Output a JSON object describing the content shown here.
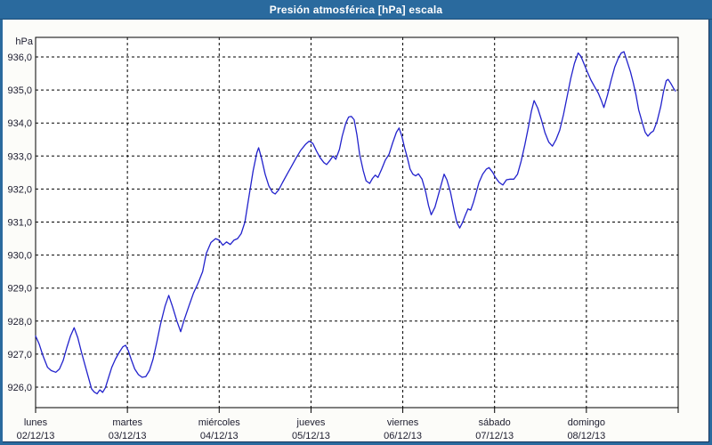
{
  "window": {
    "title": "Presión atmosférica [hPa] escala"
  },
  "colors": {
    "frame": "#2A6A9E",
    "frame_inner_dark": "#16355E",
    "titlebar_text": "#FFFFFF",
    "plot_background": "#FFFFFF",
    "content_background": "#FCFCF9",
    "grid": "#000000",
    "series_line": "#2222CC",
    "tick_text": "#1C1C2E"
  },
  "chart_data": {
    "type": "line",
    "title": "Presión atmosférica [hPa] escala",
    "unit_label": "hPa",
    "grid": "on",
    "legend": "none",
    "ylim": [
      925.4,
      936.6
    ],
    "x_range_days": [
      0,
      7
    ],
    "y_ticks": [
      {
        "value": 936.0,
        "label": "936,0"
      },
      {
        "value": 935.0,
        "label": "935,0"
      },
      {
        "value": 934.0,
        "label": "934,0"
      },
      {
        "value": 933.0,
        "label": "933,0"
      },
      {
        "value": 932.0,
        "label": "932,0"
      },
      {
        "value": 931.0,
        "label": "931,0"
      },
      {
        "value": 930.0,
        "label": "930,0"
      },
      {
        "value": 929.0,
        "label": "929,0"
      },
      {
        "value": 928.0,
        "label": "928,0"
      },
      {
        "value": 927.0,
        "label": "927,0"
      },
      {
        "value": 926.0,
        "label": "926,0"
      }
    ],
    "x_ticks": [
      {
        "day": "lunes",
        "date": "02/12/13",
        "t": 0
      },
      {
        "day": "martes",
        "date": "03/12/13",
        "t": 1
      },
      {
        "day": "miércoles",
        "date": "04/12/13",
        "t": 2
      },
      {
        "day": "jueves",
        "date": "05/12/13",
        "t": 3
      },
      {
        "day": "viernes",
        "date": "06/12/13",
        "t": 4
      },
      {
        "day": "sábado",
        "date": "07/12/13",
        "t": 5
      },
      {
        "day": "domingo",
        "date": "08/12/13",
        "t": 6
      }
    ],
    "series": [
      {
        "name": "Presión atmosférica",
        "color": "#2222CC",
        "points": [
          [
            0.0,
            927.55
          ],
          [
            0.04,
            927.3
          ],
          [
            0.08,
            926.95
          ],
          [
            0.13,
            926.6
          ],
          [
            0.17,
            926.5
          ],
          [
            0.22,
            926.45
          ],
          [
            0.26,
            926.55
          ],
          [
            0.3,
            926.8
          ],
          [
            0.34,
            927.2
          ],
          [
            0.38,
            927.55
          ],
          [
            0.42,
            927.8
          ],
          [
            0.46,
            927.5
          ],
          [
            0.5,
            927.05
          ],
          [
            0.54,
            926.65
          ],
          [
            0.58,
            926.25
          ],
          [
            0.61,
            925.95
          ],
          [
            0.64,
            925.85
          ],
          [
            0.67,
            925.8
          ],
          [
            0.7,
            925.92
          ],
          [
            0.73,
            925.84
          ],
          [
            0.76,
            925.98
          ],
          [
            0.79,
            926.25
          ],
          [
            0.83,
            926.6
          ],
          [
            0.87,
            926.85
          ],
          [
            0.91,
            927.05
          ],
          [
            0.95,
            927.22
          ],
          [
            0.98,
            927.27
          ],
          [
            1.01,
            927.1
          ],
          [
            1.04,
            926.85
          ],
          [
            1.08,
            926.55
          ],
          [
            1.12,
            926.38
          ],
          [
            1.16,
            926.3
          ],
          [
            1.2,
            926.32
          ],
          [
            1.24,
            926.5
          ],
          [
            1.28,
            926.85
          ],
          [
            1.32,
            927.35
          ],
          [
            1.36,
            927.9
          ],
          [
            1.41,
            928.45
          ],
          [
            1.45,
            928.78
          ],
          [
            1.49,
            928.45
          ],
          [
            1.54,
            928.0
          ],
          [
            1.58,
            927.68
          ],
          [
            1.62,
            928.05
          ],
          [
            1.67,
            928.45
          ],
          [
            1.72,
            928.85
          ],
          [
            1.77,
            929.15
          ],
          [
            1.82,
            929.5
          ],
          [
            1.86,
            930.05
          ],
          [
            1.91,
            930.38
          ],
          [
            1.96,
            930.5
          ],
          [
            2.0,
            930.45
          ],
          [
            2.04,
            930.3
          ],
          [
            2.08,
            930.4
          ],
          [
            2.12,
            930.32
          ],
          [
            2.16,
            930.45
          ],
          [
            2.2,
            930.5
          ],
          [
            2.24,
            930.65
          ],
          [
            2.28,
            931.0
          ],
          [
            2.32,
            931.7
          ],
          [
            2.37,
            932.55
          ],
          [
            2.41,
            933.1
          ],
          [
            2.43,
            933.25
          ],
          [
            2.46,
            932.95
          ],
          [
            2.5,
            932.45
          ],
          [
            2.54,
            932.1
          ],
          [
            2.58,
            931.9
          ],
          [
            2.61,
            931.85
          ],
          [
            2.65,
            931.98
          ],
          [
            2.69,
            932.2
          ],
          [
            2.74,
            932.45
          ],
          [
            2.79,
            932.7
          ],
          [
            2.84,
            932.95
          ],
          [
            2.89,
            933.18
          ],
          [
            2.94,
            933.35
          ],
          [
            2.98,
            933.45
          ],
          [
            3.02,
            933.38
          ],
          [
            3.06,
            933.15
          ],
          [
            3.1,
            932.95
          ],
          [
            3.14,
            932.8
          ],
          [
            3.17,
            932.74
          ],
          [
            3.21,
            932.88
          ],
          [
            3.24,
            933.0
          ],
          [
            3.27,
            932.9
          ],
          [
            3.31,
            933.2
          ],
          [
            3.34,
            933.6
          ],
          [
            3.38,
            934.0
          ],
          [
            3.41,
            934.18
          ],
          [
            3.44,
            934.2
          ],
          [
            3.47,
            934.1
          ],
          [
            3.5,
            933.65
          ],
          [
            3.53,
            933.05
          ],
          [
            3.57,
            932.55
          ],
          [
            3.6,
            932.25
          ],
          [
            3.64,
            932.17
          ],
          [
            3.67,
            932.32
          ],
          [
            3.7,
            932.42
          ],
          [
            3.73,
            932.35
          ],
          [
            3.77,
            932.6
          ],
          [
            3.81,
            932.88
          ],
          [
            3.85,
            933.05
          ],
          [
            3.89,
            933.4
          ],
          [
            3.93,
            933.72
          ],
          [
            3.96,
            933.85
          ],
          [
            3.99,
            933.6
          ],
          [
            4.02,
            933.25
          ],
          [
            4.05,
            932.95
          ],
          [
            4.08,
            932.6
          ],
          [
            4.11,
            932.45
          ],
          [
            4.14,
            932.4
          ],
          [
            4.17,
            932.46
          ],
          [
            4.21,
            932.3
          ],
          [
            4.25,
            931.9
          ],
          [
            4.28,
            931.5
          ],
          [
            4.31,
            931.22
          ],
          [
            4.35,
            931.45
          ],
          [
            4.38,
            931.75
          ],
          [
            4.42,
            932.15
          ],
          [
            4.45,
            932.45
          ],
          [
            4.48,
            932.28
          ],
          [
            4.52,
            931.9
          ],
          [
            4.56,
            931.35
          ],
          [
            4.59,
            930.98
          ],
          [
            4.62,
            930.82
          ],
          [
            4.65,
            930.98
          ],
          [
            4.68,
            931.2
          ],
          [
            4.71,
            931.4
          ],
          [
            4.74,
            931.36
          ],
          [
            4.77,
            931.6
          ],
          [
            4.8,
            931.9
          ],
          [
            4.83,
            932.2
          ],
          [
            4.87,
            932.45
          ],
          [
            4.91,
            932.6
          ],
          [
            4.94,
            932.65
          ],
          [
            4.98,
            932.5
          ],
          [
            5.01,
            932.35
          ],
          [
            5.05,
            932.2
          ],
          [
            5.09,
            932.12
          ],
          [
            5.13,
            932.28
          ],
          [
            5.17,
            932.3
          ],
          [
            5.21,
            932.3
          ],
          [
            5.25,
            932.45
          ],
          [
            5.29,
            932.85
          ],
          [
            5.33,
            933.35
          ],
          [
            5.37,
            933.9
          ],
          [
            5.4,
            934.35
          ],
          [
            5.43,
            934.68
          ],
          [
            5.47,
            934.45
          ],
          [
            5.51,
            934.1
          ],
          [
            5.55,
            933.7
          ],
          [
            5.59,
            933.42
          ],
          [
            5.63,
            933.3
          ],
          [
            5.67,
            933.5
          ],
          [
            5.71,
            933.78
          ],
          [
            5.75,
            934.25
          ],
          [
            5.79,
            934.8
          ],
          [
            5.83,
            935.35
          ],
          [
            5.87,
            935.8
          ],
          [
            5.91,
            936.12
          ],
          [
            5.94,
            936.02
          ],
          [
            5.97,
            935.82
          ],
          [
            6.01,
            935.55
          ],
          [
            6.05,
            935.3
          ],
          [
            6.09,
            935.1
          ],
          [
            6.13,
            934.9
          ],
          [
            6.16,
            934.7
          ],
          [
            6.19,
            934.47
          ],
          [
            6.23,
            934.85
          ],
          [
            6.27,
            935.3
          ],
          [
            6.31,
            935.7
          ],
          [
            6.35,
            935.98
          ],
          [
            6.38,
            936.12
          ],
          [
            6.41,
            936.16
          ],
          [
            6.44,
            935.9
          ],
          [
            6.48,
            935.55
          ],
          [
            6.51,
            935.22
          ],
          [
            6.54,
            934.85
          ],
          [
            6.57,
            934.4
          ],
          [
            6.61,
            934.0
          ],
          [
            6.64,
            933.72
          ],
          [
            6.67,
            933.6
          ],
          [
            6.7,
            933.7
          ],
          [
            6.73,
            933.76
          ],
          [
            6.77,
            934.05
          ],
          [
            6.81,
            934.5
          ],
          [
            6.84,
            934.95
          ],
          [
            6.87,
            935.28
          ],
          [
            6.89,
            935.32
          ],
          [
            6.92,
            935.2
          ],
          [
            6.95,
            935.05
          ],
          [
            6.97,
            934.97
          ]
        ]
      }
    ]
  }
}
